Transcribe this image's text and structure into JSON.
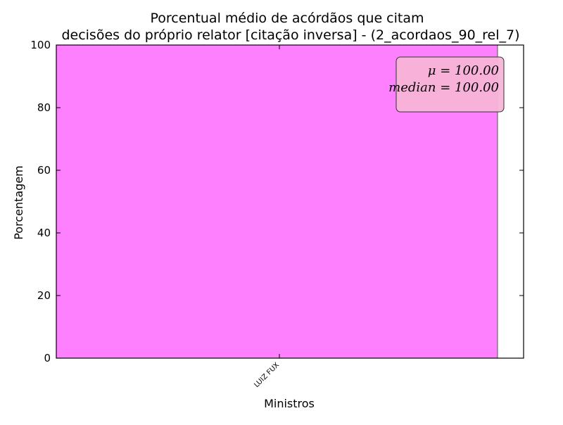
{
  "chart_data": {
    "type": "bar",
    "title_lines": [
      "Porcentual médio de acórdãos que citam",
      "decisões do próprio relator [citação inversa] - (2_acordaos_90_rel_7)"
    ],
    "xlabel": "Ministros",
    "ylabel": "Porcentagem",
    "categories": [
      "LUIZ FUX"
    ],
    "values": [
      100
    ],
    "ylim": [
      0,
      100
    ],
    "yticks": [
      0,
      20,
      40,
      60,
      80,
      100
    ],
    "ytick_labels": [
      "0",
      "20",
      "40",
      "60",
      "80",
      "100"
    ],
    "grid": false,
    "bar_color": "#ff80ff",
    "bar_edge_color": "#555555",
    "stats_box": {
      "mean_label": "μ = 100.00",
      "median_label": "median = 100.00",
      "position": "top-right",
      "face_color": "#f8b4d8",
      "edge_color": "#333333"
    }
  }
}
